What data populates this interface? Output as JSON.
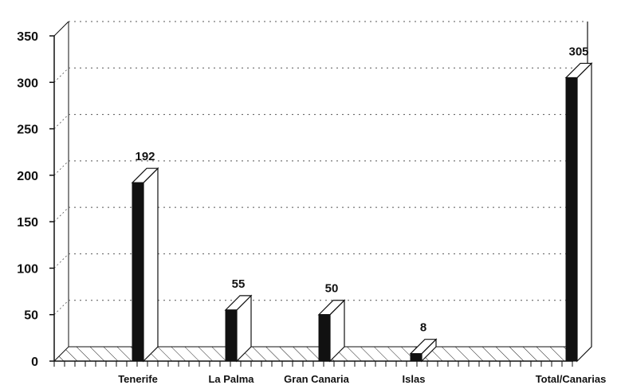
{
  "chart_data": {
    "type": "bar",
    "title": "",
    "xlabel": "",
    "ylabel": "",
    "categories": [
      "Tenerife",
      "La Palma",
      "Gran Canaria",
      "Islas",
      "Total/Canarias"
    ],
    "values": [
      192,
      55,
      50,
      8,
      305
    ],
    "data_labels": [
      "192",
      "55",
      "50",
      "8",
      "305"
    ],
    "y_ticks": [
      0,
      50,
      100,
      150,
      200,
      250,
      300,
      350
    ],
    "y_tick_labels": [
      "0",
      "50",
      "100",
      "150",
      "200",
      "250",
      "300",
      "350"
    ],
    "ylim": [
      0,
      350
    ],
    "grid": true,
    "grid_style": "dotted",
    "style": "3d",
    "colors": {
      "bar_front": "#111111",
      "bar_side": "#ffffff",
      "bar_top": "#ffffff",
      "axis": "#111111",
      "grid": "#555555",
      "floor_hatch": "#222222"
    }
  }
}
